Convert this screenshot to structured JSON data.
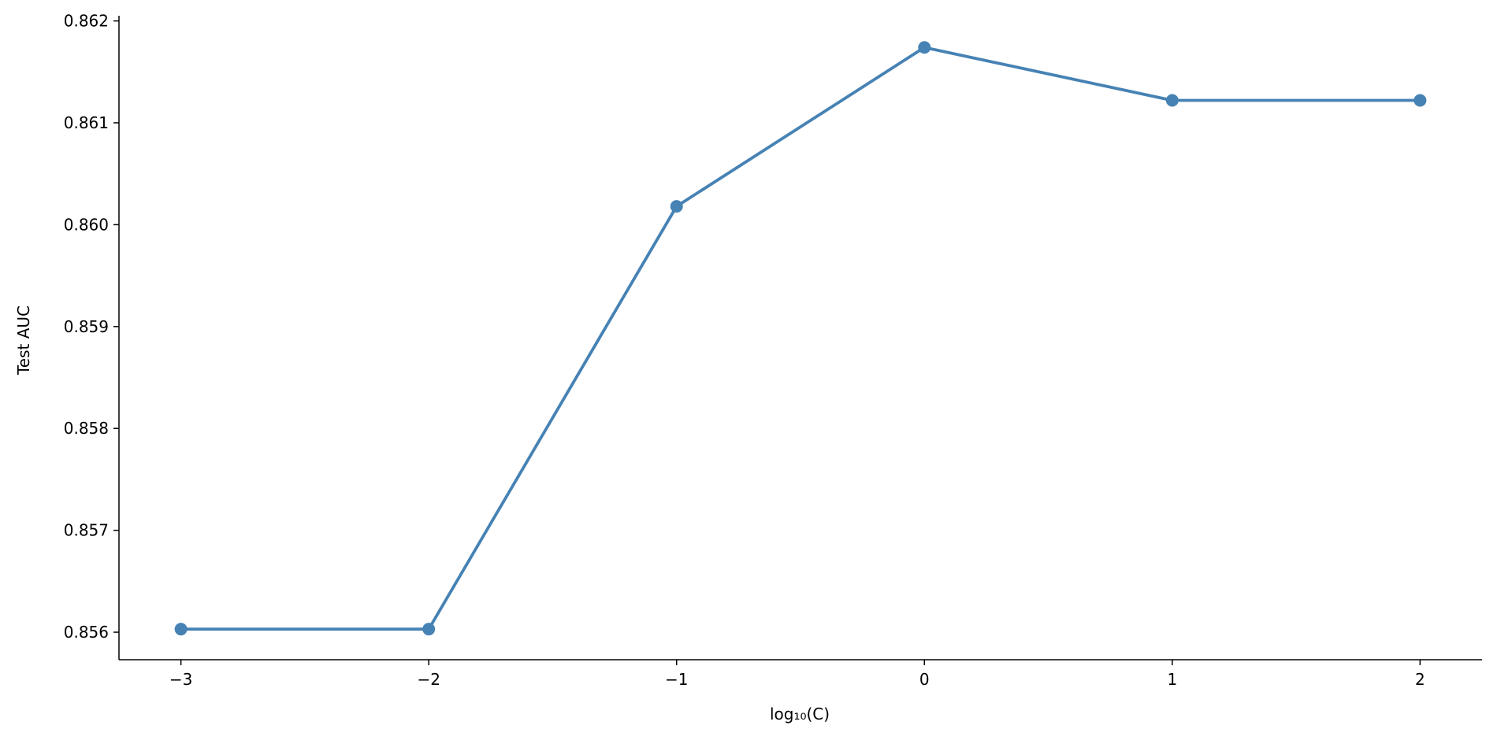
{
  "chart_data": {
    "type": "line",
    "title": "",
    "xlabel": "log₁₀(C)",
    "ylabel": "Test AUC",
    "x": [
      -3,
      -2,
      -1,
      0,
      1,
      2
    ],
    "series": [
      {
        "values": [
          0.85603,
          0.85603,
          0.86018,
          0.86174,
          0.86122,
          0.86122
        ],
        "color": "#4682b4",
        "marker": "circle"
      }
    ],
    "xlim": [
      -3.25,
      2.25
    ],
    "ylim": [
      0.85573,
      0.86202
    ],
    "xticks": [
      -3,
      -2,
      -1,
      0,
      1,
      2
    ],
    "xtick_labels": [
      "−3",
      "−2",
      "−1",
      "0",
      "1",
      "2"
    ],
    "yticks": [
      0.856,
      0.857,
      0.858,
      0.859,
      0.86,
      0.861,
      0.862
    ],
    "ytick_labels": [
      "0.856",
      "0.857",
      "0.858",
      "0.859",
      "0.860",
      "0.861",
      "0.862"
    ],
    "grid": false,
    "spines": [
      "left",
      "bottom"
    ]
  }
}
